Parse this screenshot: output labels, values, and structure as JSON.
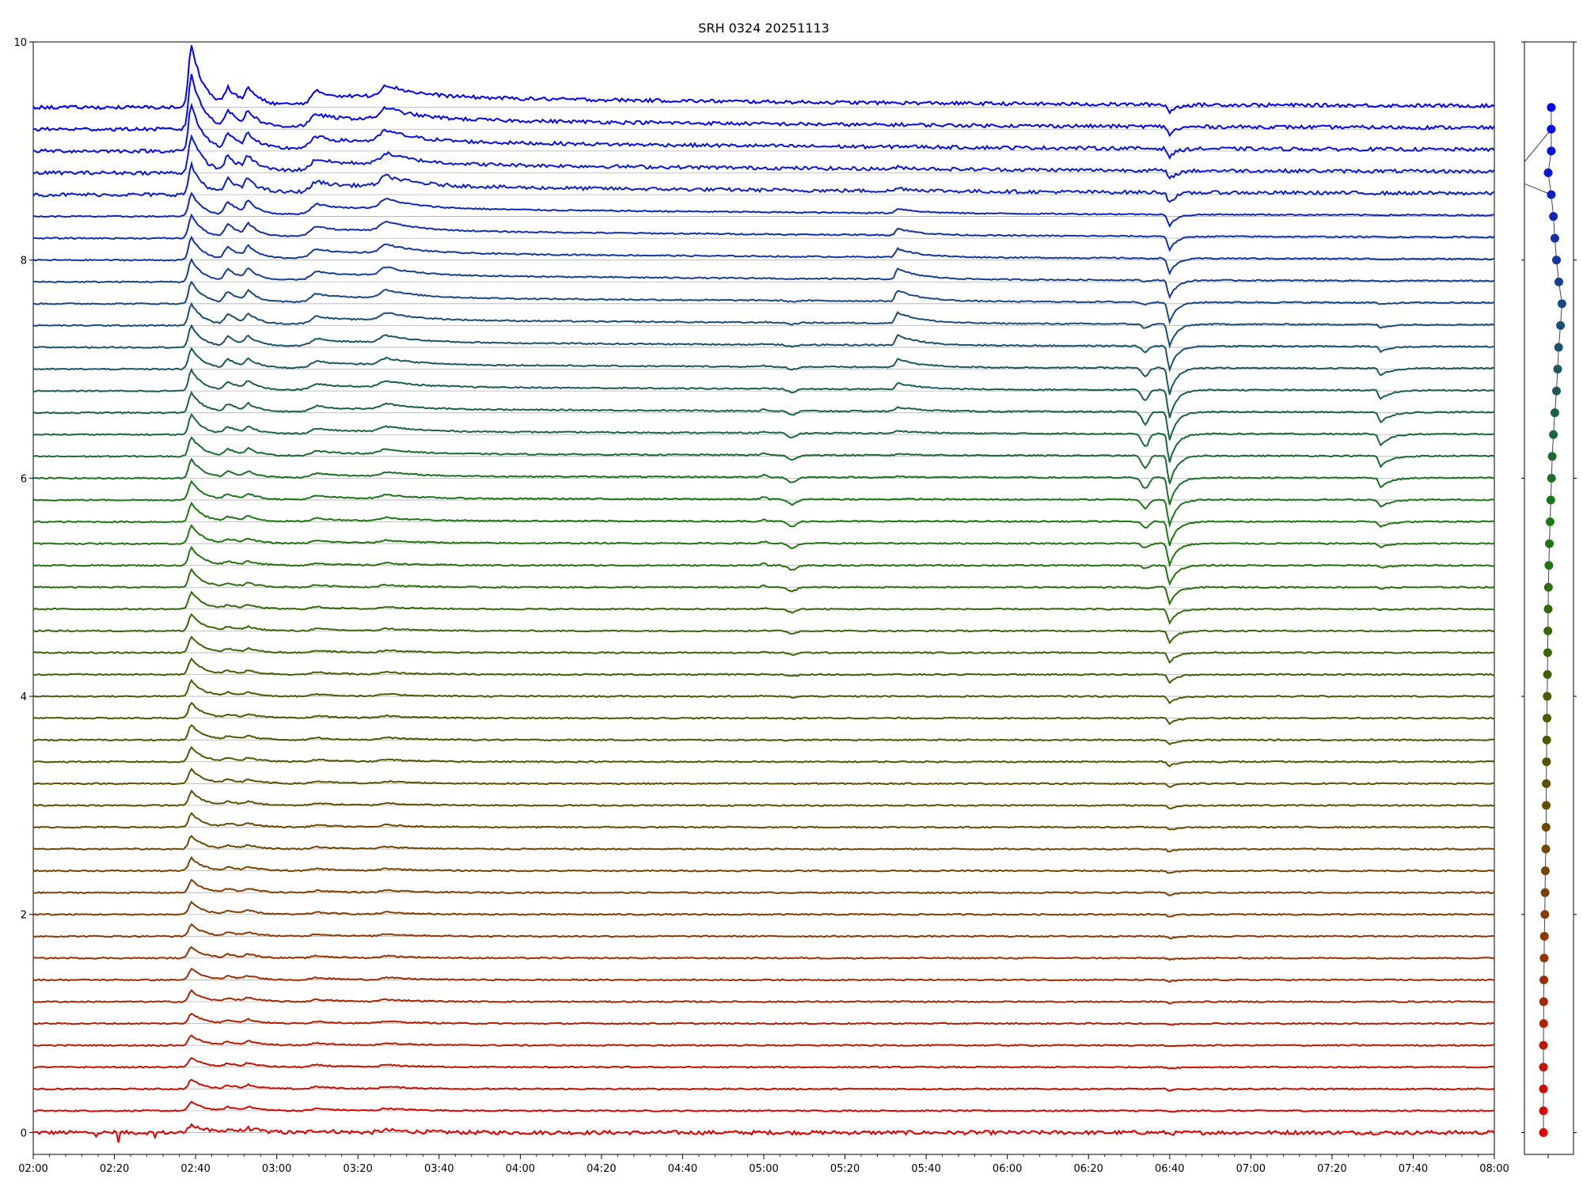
{
  "chart_data": [
    {
      "type": "line",
      "title": "SRH 0324 20251113",
      "xlabel": "",
      "ylabel": "",
      "x_range": [
        "02:00",
        "08:00"
      ],
      "xlim_minutes": [
        0,
        360
      ],
      "ylim": [
        -0.2,
        10
      ],
      "x_ticks": [
        "02:00",
        "02:20",
        "02:40",
        "03:00",
        "03:20",
        "03:40",
        "04:00",
        "04:20",
        "04:40",
        "05:00",
        "05:20",
        "05:40",
        "06:00",
        "06:20",
        "06:40",
        "07:00",
        "07:20",
        "07:40",
        "08:00"
      ],
      "y_ticks": [
        0,
        2,
        4,
        6,
        8,
        10
      ],
      "grid": "horizontal baselines per channel",
      "legend": "none",
      "num_traces": 48,
      "trace_offset_step": 0.2,
      "trace_offset_range": [
        0,
        9.4
      ],
      "color_gradient": [
        "#e00000",
        "#8a3a00",
        "#4a5a00",
        "#1a7a10",
        "#1a4a80",
        "#0000ff"
      ],
      "events": [
        {
          "time": "02:39",
          "description": "sharp peak, strongest in top channels"
        },
        {
          "time": "02:48",
          "description": "secondary burst"
        },
        {
          "time": "02:52",
          "description": "secondary burst"
        },
        {
          "time": "03:10",
          "description": "burst series (upper channels)"
        },
        {
          "time": "03:28",
          "description": "burst"
        },
        {
          "time": "05:00",
          "description": "small feature mid channels"
        },
        {
          "time": "05:07",
          "description": "dip mid channels"
        },
        {
          "time": "05:33",
          "description": "peak upper-mid channels"
        },
        {
          "time": "06:34",
          "description": "dip green channels"
        },
        {
          "time": "06:40",
          "description": "deep dip, all channels"
        },
        {
          "time": "07:32",
          "description": "dip green channels"
        }
      ]
    },
    {
      "type": "scatter",
      "title": "",
      "xlabel": "",
      "ylabel": "",
      "ylim": [
        -0.2,
        10
      ],
      "description": "per-channel marker profile",
      "points_x": [
        0.0,
        0.0,
        0.0,
        0.0,
        0.0,
        0.01,
        0.01,
        0.02,
        0.03,
        0.04,
        0.06,
        0.07,
        0.08,
        0.1,
        0.11,
        0.12,
        0.12,
        0.13,
        0.14,
        0.15,
        0.16,
        0.17,
        0.18,
        0.19,
        0.2,
        0.21,
        0.23,
        0.25,
        0.28,
        0.31,
        0.34,
        0.37,
        0.42,
        0.48,
        0.55,
        0.6,
        0.64,
        0.72,
        0.78,
        0.65,
        0.55,
        0.48,
        0.42,
        0.33,
        0.2,
        0.33,
        0.33,
        0.33
      ],
      "points_y": [
        0.0,
        0.2,
        0.4,
        0.6,
        0.8,
        1.0,
        1.2,
        1.4,
        1.6,
        1.8,
        2.0,
        2.2,
        2.4,
        2.6,
        2.8,
        3.0,
        3.2,
        3.4,
        3.6,
        3.8,
        4.0,
        4.2,
        4.4,
        4.6,
        4.8,
        5.0,
        5.2,
        5.4,
        5.6,
        5.8,
        6.0,
        6.2,
        6.4,
        6.6,
        6.8,
        7.0,
        7.2,
        7.4,
        7.6,
        7.8,
        8.0,
        8.2,
        8.4,
        8.6,
        8.8,
        9.0,
        9.2,
        9.4
      ],
      "y_ticks": [
        0,
        2,
        4,
        6,
        8,
        10
      ]
    }
  ]
}
